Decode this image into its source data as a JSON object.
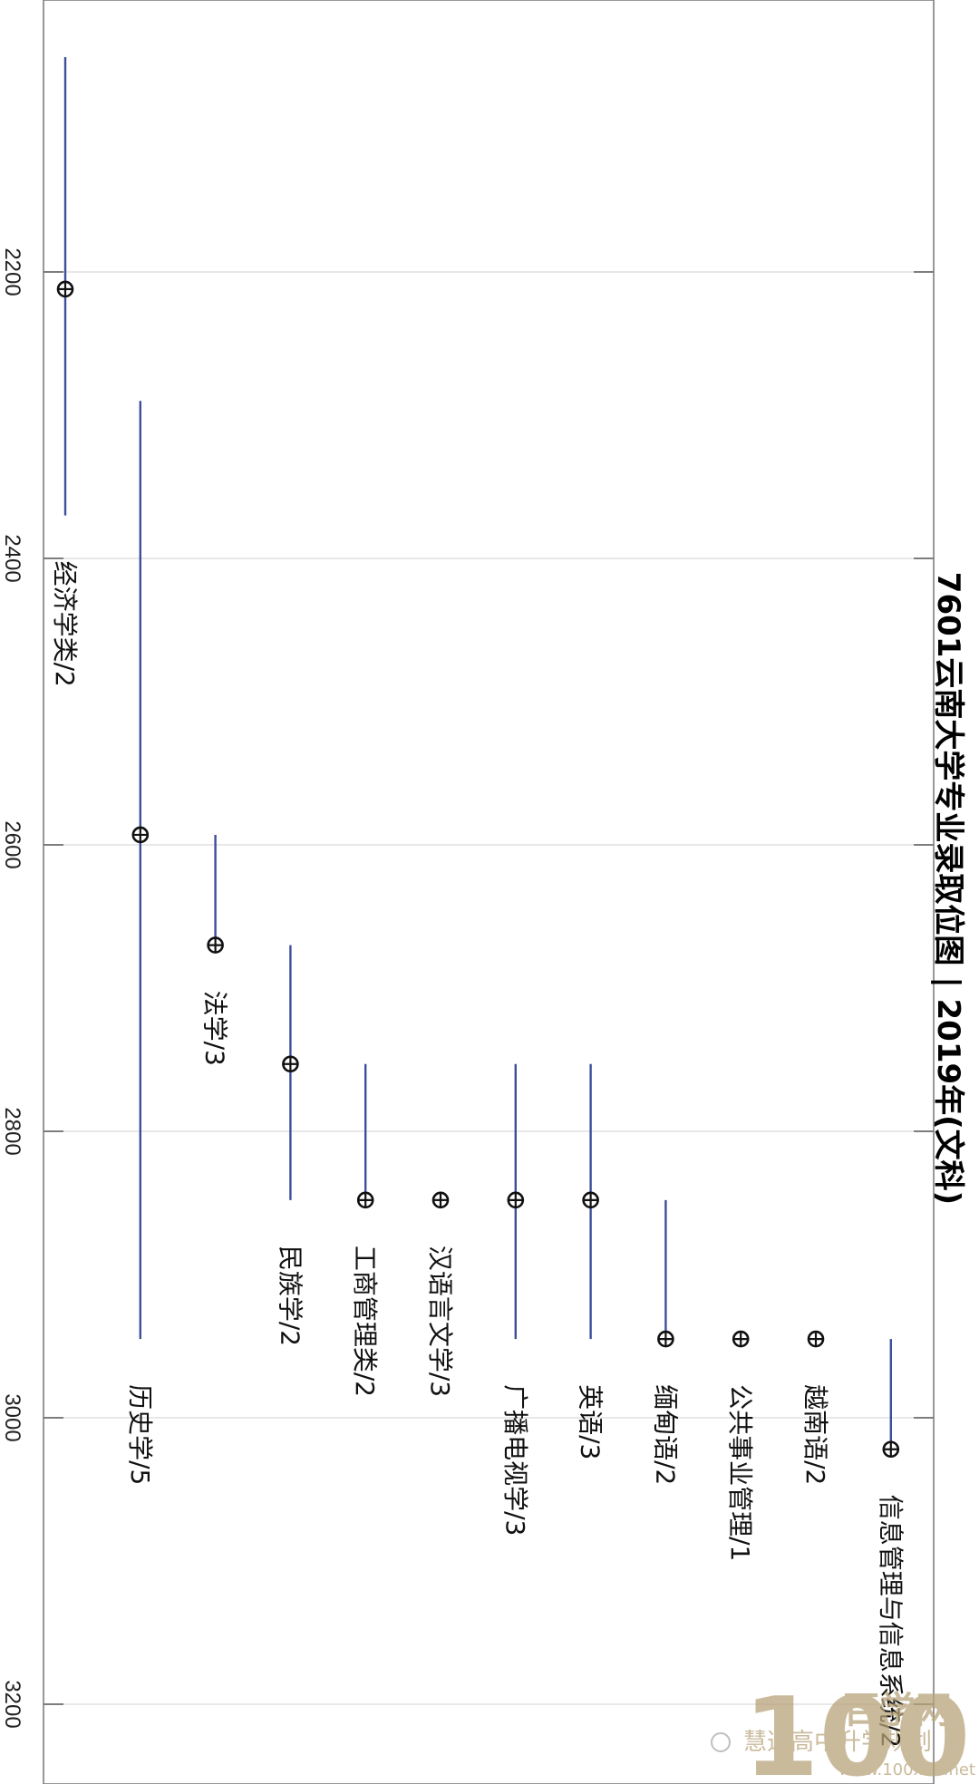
{
  "chart_data": {
    "type": "range-dot",
    "title": "7601云南大学专业录取位图 | 2019年(文科)",
    "xlabel": "",
    "ylabel": "",
    "ticks": [
      2200,
      2400,
      2600,
      2800,
      3000,
      3200
    ],
    "ylim": [
      2010,
      3260
    ],
    "grid": true,
    "series": [
      {
        "label": "经济学类/2",
        "min": 2050,
        "max": 2370,
        "point": 2212
      },
      {
        "label": "历史学/5",
        "min": 2290,
        "max": 2945,
        "point": 2593
      },
      {
        "label": "法学/3",
        "min": 2593,
        "max": 2670,
        "point": 2670
      },
      {
        "label": "民族学/2",
        "min": 2670,
        "max": 2848,
        "point": 2753
      },
      {
        "label": "工商管理类/2",
        "min": 2753,
        "max": 2848,
        "point": 2848
      },
      {
        "label": "汉语言文学/3",
        "min": 2848,
        "max": 2848,
        "point": 2848
      },
      {
        "label": "广播电视学/3",
        "min": 2753,
        "max": 2945,
        "point": 2848
      },
      {
        "label": "英语/3",
        "min": 2753,
        "max": 2945,
        "point": 2848
      },
      {
        "label": "缅甸语/2",
        "min": 2848,
        "max": 2945,
        "point": 2945
      },
      {
        "label": "公共事业管理/1",
        "min": 2945,
        "max": 2945,
        "point": 2945
      },
      {
        "label": "越南语/2",
        "min": 2945,
        "max": 2945,
        "point": 2945
      },
      {
        "label": "信息管理与信息系统/2",
        "min": 2945,
        "max": 3022,
        "point": 3022
      }
    ]
  },
  "watermark": {
    "brand": "百学网",
    "site": "www.100xue.net",
    "account": "慧选高中升学规划",
    "logo_text": "100"
  },
  "colors": {
    "line": "#3b4f9a",
    "grid": "#d9d9d9",
    "frame": "#777777",
    "marker": "#111111"
  }
}
